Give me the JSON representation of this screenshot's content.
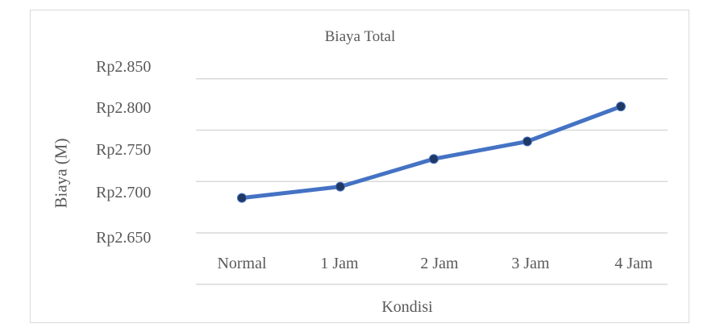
{
  "chart_data": {
    "type": "line",
    "title": "Biaya Total",
    "xlabel": "Kondisi",
    "ylabel": "Biaya (M)",
    "categories": [
      "Normal",
      "1 Jam",
      "2 Jam",
      "3 Jam",
      "4 Jam"
    ],
    "series": [
      {
        "name": "Biaya Total",
        "values": [
          2.734,
          2.745,
          2.772,
          2.789,
          2.823
        ],
        "color": "#4472c4",
        "marker_color": "#1f3864"
      }
    ],
    "y_tick_labels": [
      "Rp2.850",
      "Rp2.800",
      "Rp2.750",
      "Rp2.700",
      "Rp2.650"
    ],
    "y_ticks": [
      2.85,
      2.8,
      2.75,
      2.7,
      2.65
    ],
    "ylim": [
      2.65,
      2.85
    ],
    "grid": true,
    "legend": "none"
  }
}
